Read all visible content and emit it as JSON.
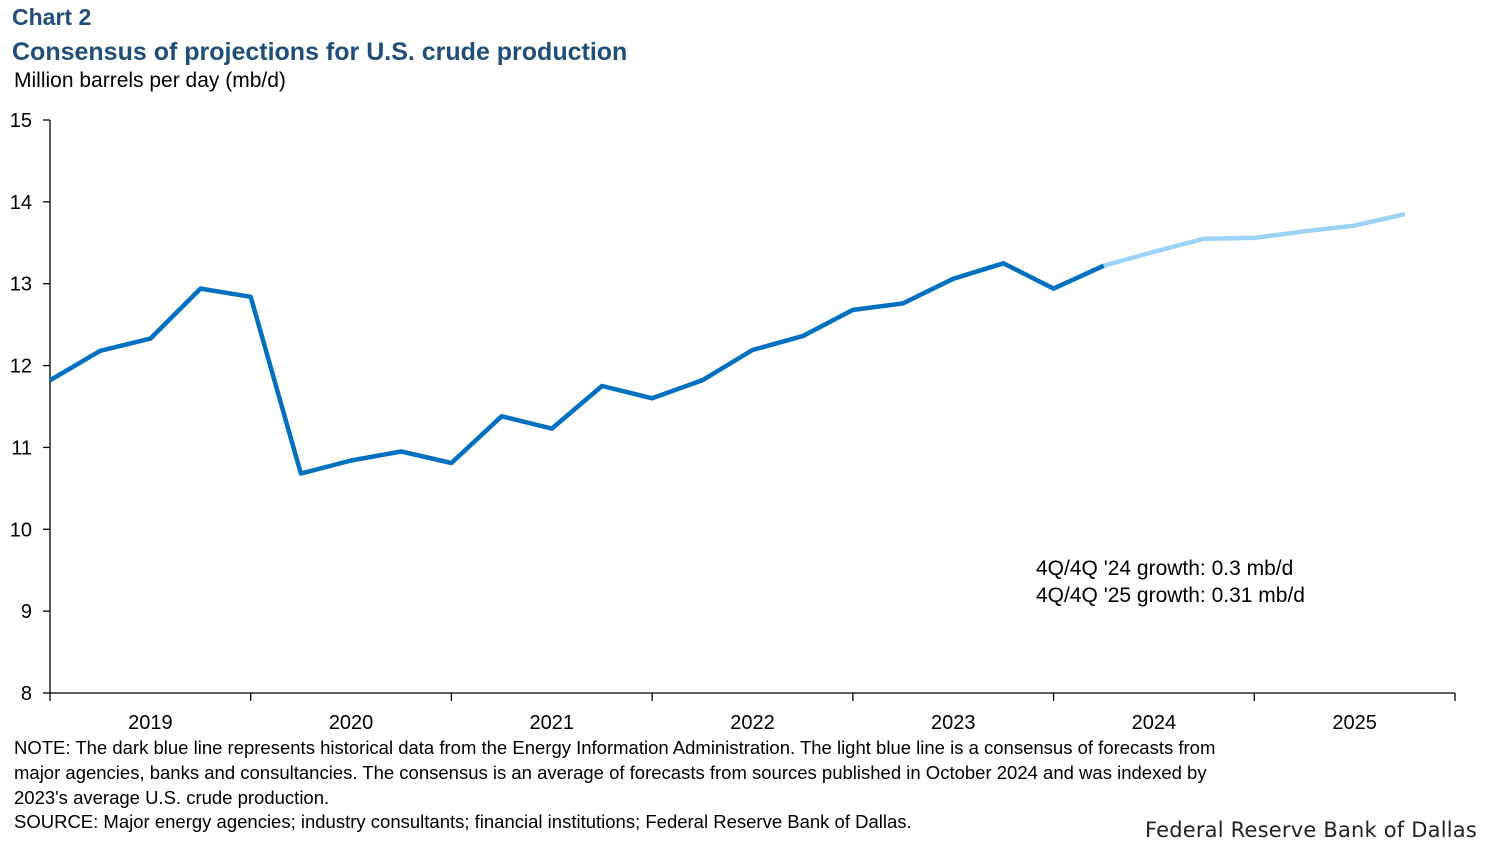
{
  "header": {
    "chart_label": "Chart 2",
    "title": "Consensus of projections for U.S. crude production"
  },
  "colors": {
    "historical": "#0070c0",
    "forecast": "#9dd3f7",
    "axis": "#000000"
  },
  "chart_data": {
    "type": "line",
    "title": "Consensus of projections for U.S. crude production",
    "ylabel": "Million barrels per day (mb/d)",
    "xlabel": "",
    "ylim": [
      8,
      15
    ],
    "yticks": [
      8,
      9,
      10,
      11,
      12,
      13,
      14,
      15
    ],
    "x_categories": [
      "2019",
      "2020",
      "2021",
      "2022",
      "2023",
      "2024",
      "2025"
    ],
    "grid": false,
    "series": [
      {
        "name": "Historical (EIA)",
        "color": "#0070c0",
        "x": [
          "2019Q1",
          "2019Q2",
          "2019Q3",
          "2019Q4",
          "2020Q1",
          "2020Q2",
          "2020Q3",
          "2020Q4",
          "2021Q1",
          "2021Q2",
          "2021Q3",
          "2021Q4",
          "2022Q1",
          "2022Q2",
          "2022Q3",
          "2022Q4",
          "2023Q1",
          "2023Q2",
          "2023Q3",
          "2023Q4",
          "2024Q1",
          "2024Q2"
        ],
        "values": [
          11.82,
          12.18,
          12.33,
          12.94,
          12.84,
          10.68,
          10.84,
          10.95,
          10.81,
          11.38,
          11.23,
          11.75,
          11.6,
          11.82,
          12.19,
          12.36,
          12.68,
          12.76,
          13.06,
          13.25,
          12.94,
          13.22
        ]
      },
      {
        "name": "Consensus forecast",
        "color": "#9dd3f7",
        "x": [
          "2024Q2",
          "2024Q3",
          "2024Q4",
          "2025Q1",
          "2025Q2",
          "2025Q3",
          "2025Q4"
        ],
        "values": [
          13.22,
          13.39,
          13.55,
          13.56,
          13.64,
          13.71,
          13.85
        ]
      }
    ],
    "annotations": [
      "4Q/4Q '24 growth: 0.3 mb/d",
      "4Q/4Q '25 growth: 0.31 mb/d"
    ]
  },
  "footer": {
    "note_lines": [
      "NOTE: The dark blue line represents historical data from the Energy Information Administration.  The light blue line is a consensus of forecasts from",
      "major agencies, banks and consultancies.  The consensus is an average of forecasts from sources published  in October 2024 and was indexed by",
      "2023's average U.S. crude production."
    ],
    "source": "SOURCE: Major energy agencies; industry consultants;  financial institutions; Federal Reserve Bank of Dallas.",
    "credit": "Federal Reserve Bank of Dallas"
  }
}
